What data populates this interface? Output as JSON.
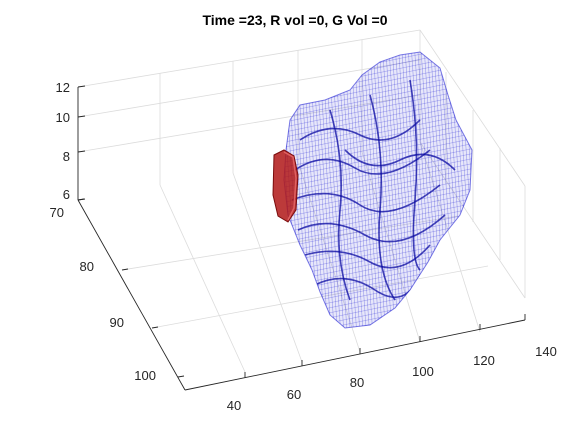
{
  "title": "Time =23, R vol =0, G Vol =0",
  "chart_data": {
    "type": "3d-isosurface",
    "title": "Time =23, R vol =0, G Vol =0",
    "xlabel": "",
    "ylabel": "",
    "zlabel": "",
    "x_ticks": [
      "40",
      "60",
      "80",
      "100",
      "120",
      "140"
    ],
    "y_ticks": [
      "70",
      "80",
      "90",
      "100"
    ],
    "z_ticks": [
      "6",
      "8",
      "10",
      "12"
    ],
    "xlim": [
      35,
      140
    ],
    "ylim": [
      70,
      104
    ],
    "zlim": [
      6,
      12
    ],
    "grid": true,
    "series": [
      {
        "color": "#1010d0",
        "render": "wireframe mesh"
      },
      {
        "color": "#b01818",
        "render": "solid surface"
      }
    ]
  }
}
